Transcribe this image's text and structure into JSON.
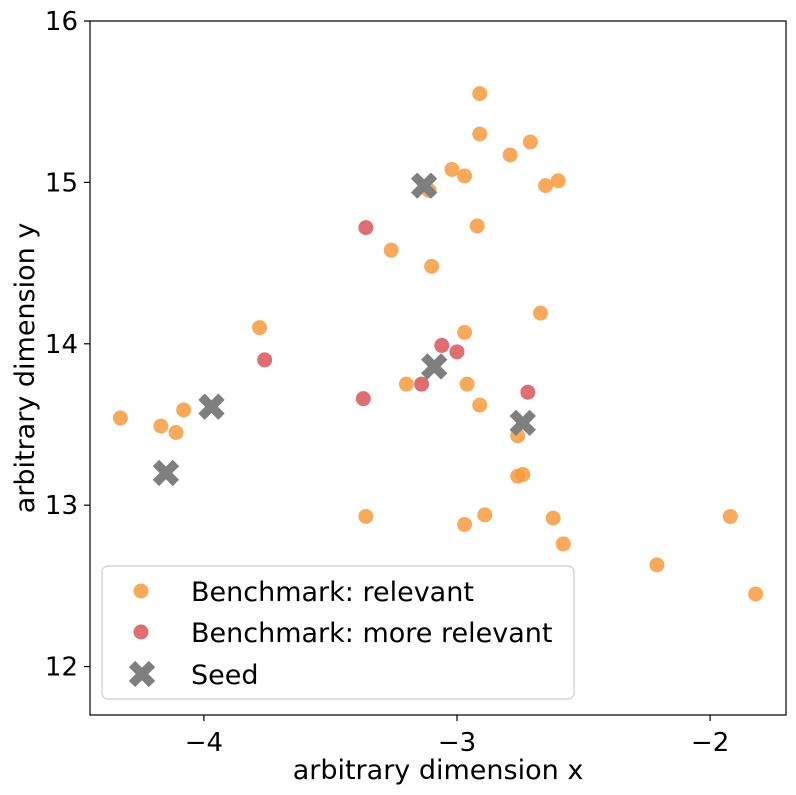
{
  "chart_data": {
    "type": "scatter",
    "title": "",
    "xlabel": "arbitrary dimension x",
    "ylabel": "arbitrary dimension y",
    "xlim": [
      -4.45,
      -1.7
    ],
    "ylim": [
      11.7,
      16.0
    ],
    "x_ticks": [
      -4,
      -3,
      -2
    ],
    "x_tick_labels": [
      "−4",
      "−3",
      "−2"
    ],
    "y_ticks": [
      12,
      13,
      14,
      15,
      16
    ],
    "y_tick_labels": [
      "12",
      "13",
      "14",
      "15",
      "16"
    ],
    "grid": false,
    "legend_position": "lower-left",
    "series": [
      {
        "name": "Benchmark: relevant",
        "color": "#f89a40",
        "marker": "circle",
        "points": [
          [
            -4.33,
            13.54
          ],
          [
            -4.17,
            13.49
          ],
          [
            -4.11,
            13.45
          ],
          [
            -4.08,
            13.59
          ],
          [
            -3.78,
            14.1
          ],
          [
            -3.36,
            12.93
          ],
          [
            -3.26,
            14.58
          ],
          [
            -3.2,
            13.75
          ],
          [
            -3.11,
            14.95
          ],
          [
            -3.1,
            14.48
          ],
          [
            -3.02,
            15.08
          ],
          [
            -2.97,
            15.04
          ],
          [
            -2.97,
            14.07
          ],
          [
            -2.96,
            13.75
          ],
          [
            -2.97,
            12.88
          ],
          [
            -2.92,
            14.73
          ],
          [
            -2.91,
            15.55
          ],
          [
            -2.91,
            15.3
          ],
          [
            -2.91,
            13.62
          ],
          [
            -2.89,
            12.94
          ],
          [
            -2.79,
            15.17
          ],
          [
            -2.76,
            13.43
          ],
          [
            -2.76,
            13.18
          ],
          [
            -2.74,
            13.19
          ],
          [
            -2.71,
            15.25
          ],
          [
            -2.67,
            14.19
          ],
          [
            -2.65,
            14.98
          ],
          [
            -2.62,
            12.92
          ],
          [
            -2.6,
            15.01
          ],
          [
            -2.58,
            12.76
          ],
          [
            -2.21,
            12.63
          ],
          [
            -1.92,
            12.93
          ],
          [
            -1.82,
            12.45
          ]
        ]
      },
      {
        "name": "Benchmark: more relevant",
        "color": "#d95559",
        "marker": "circle",
        "points": [
          [
            -3.36,
            14.72
          ],
          [
            -3.76,
            13.9
          ],
          [
            -3.37,
            13.66
          ],
          [
            -3.14,
            13.75
          ],
          [
            -3.06,
            13.99
          ],
          [
            -3.0,
            13.95
          ],
          [
            -2.72,
            13.7
          ]
        ]
      },
      {
        "name": "Seed",
        "color": "#7f7f7f",
        "marker": "x",
        "points": [
          [
            -4.15,
            13.2
          ],
          [
            -3.97,
            13.61
          ],
          [
            -3.13,
            14.98
          ],
          [
            -3.09,
            13.86
          ],
          [
            -2.74,
            13.51
          ]
        ]
      }
    ]
  }
}
